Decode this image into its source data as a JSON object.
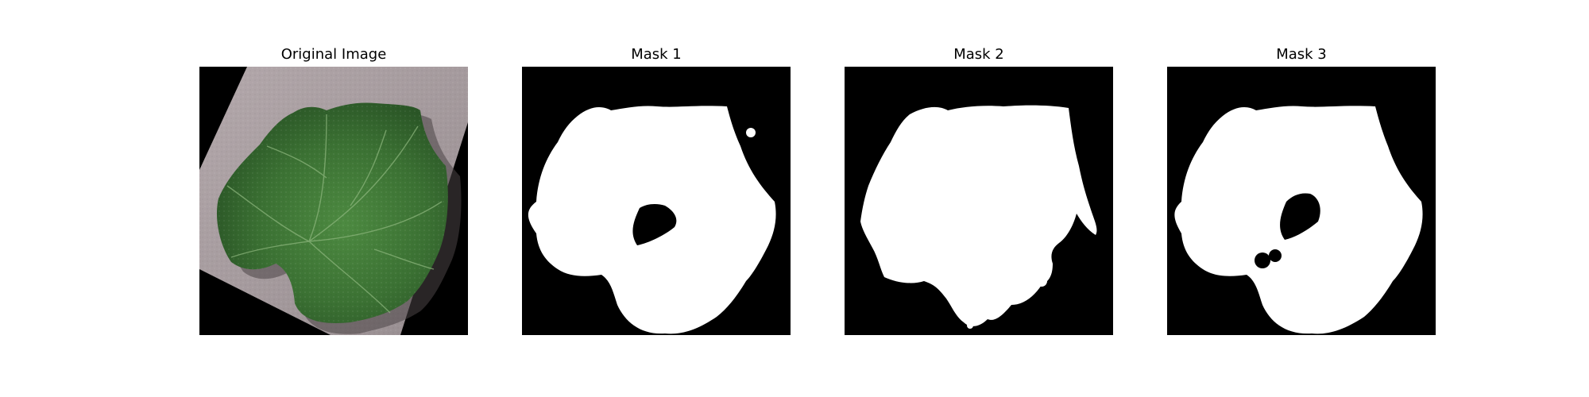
{
  "figure": {
    "panels": [
      {
        "title": "Original Image"
      },
      {
        "title": "Mask 1"
      },
      {
        "title": "Mask 2"
      },
      {
        "title": "Mask 3"
      }
    ]
  },
  "colors": {
    "background": "#000000",
    "mask": "#ffffff",
    "surface": "#a59b9d",
    "leaf": "#3d7335"
  }
}
